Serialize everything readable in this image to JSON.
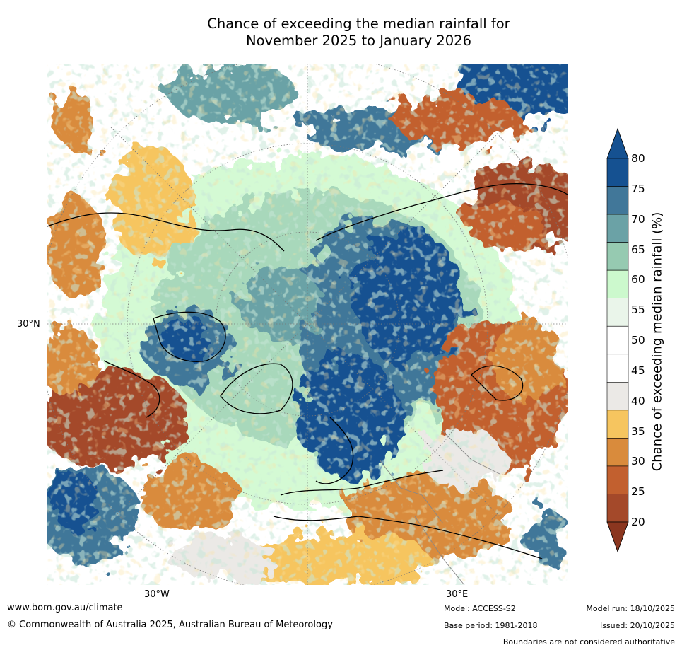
{
  "title_line1": "Chance of exceeding the median rainfall for",
  "title_line2": "November 2025 to January 2026",
  "map": {
    "latitude_label": "30°N",
    "longitude_labels": [
      "30°W",
      "30°E"
    ]
  },
  "colorbar": {
    "title": "Chance of exceeding median rainfall (%)",
    "ticks": [
      "20",
      "25",
      "30",
      "35",
      "40",
      "45",
      "50",
      "55",
      "60",
      "65",
      "70",
      "75",
      "80"
    ],
    "colors": [
      "#a4492a",
      "#c2602f",
      "#d98b3c",
      "#f6c55f",
      "#ebe9e6",
      "#ffffff",
      "#ffffff",
      "#eaf5ea",
      "#ccf9cd",
      "#96cab1",
      "#6ba2a6",
      "#417799",
      "#155191"
    ],
    "under_color": "#8b361f",
    "over_color": "#155191"
  },
  "footer": {
    "website": "www.bom.gov.au/climate",
    "copyright": "© Commonwealth of Australia 2025, Australian Bureau of Meteorology",
    "model": "Model: ACCESS-S2",
    "base_period": "Base period: 1981-2018",
    "model_run": "Model run: 18/10/2025",
    "issued": "Issued: 20/10/2025",
    "disclaimer": "Boundaries are not considered authoritative"
  }
}
